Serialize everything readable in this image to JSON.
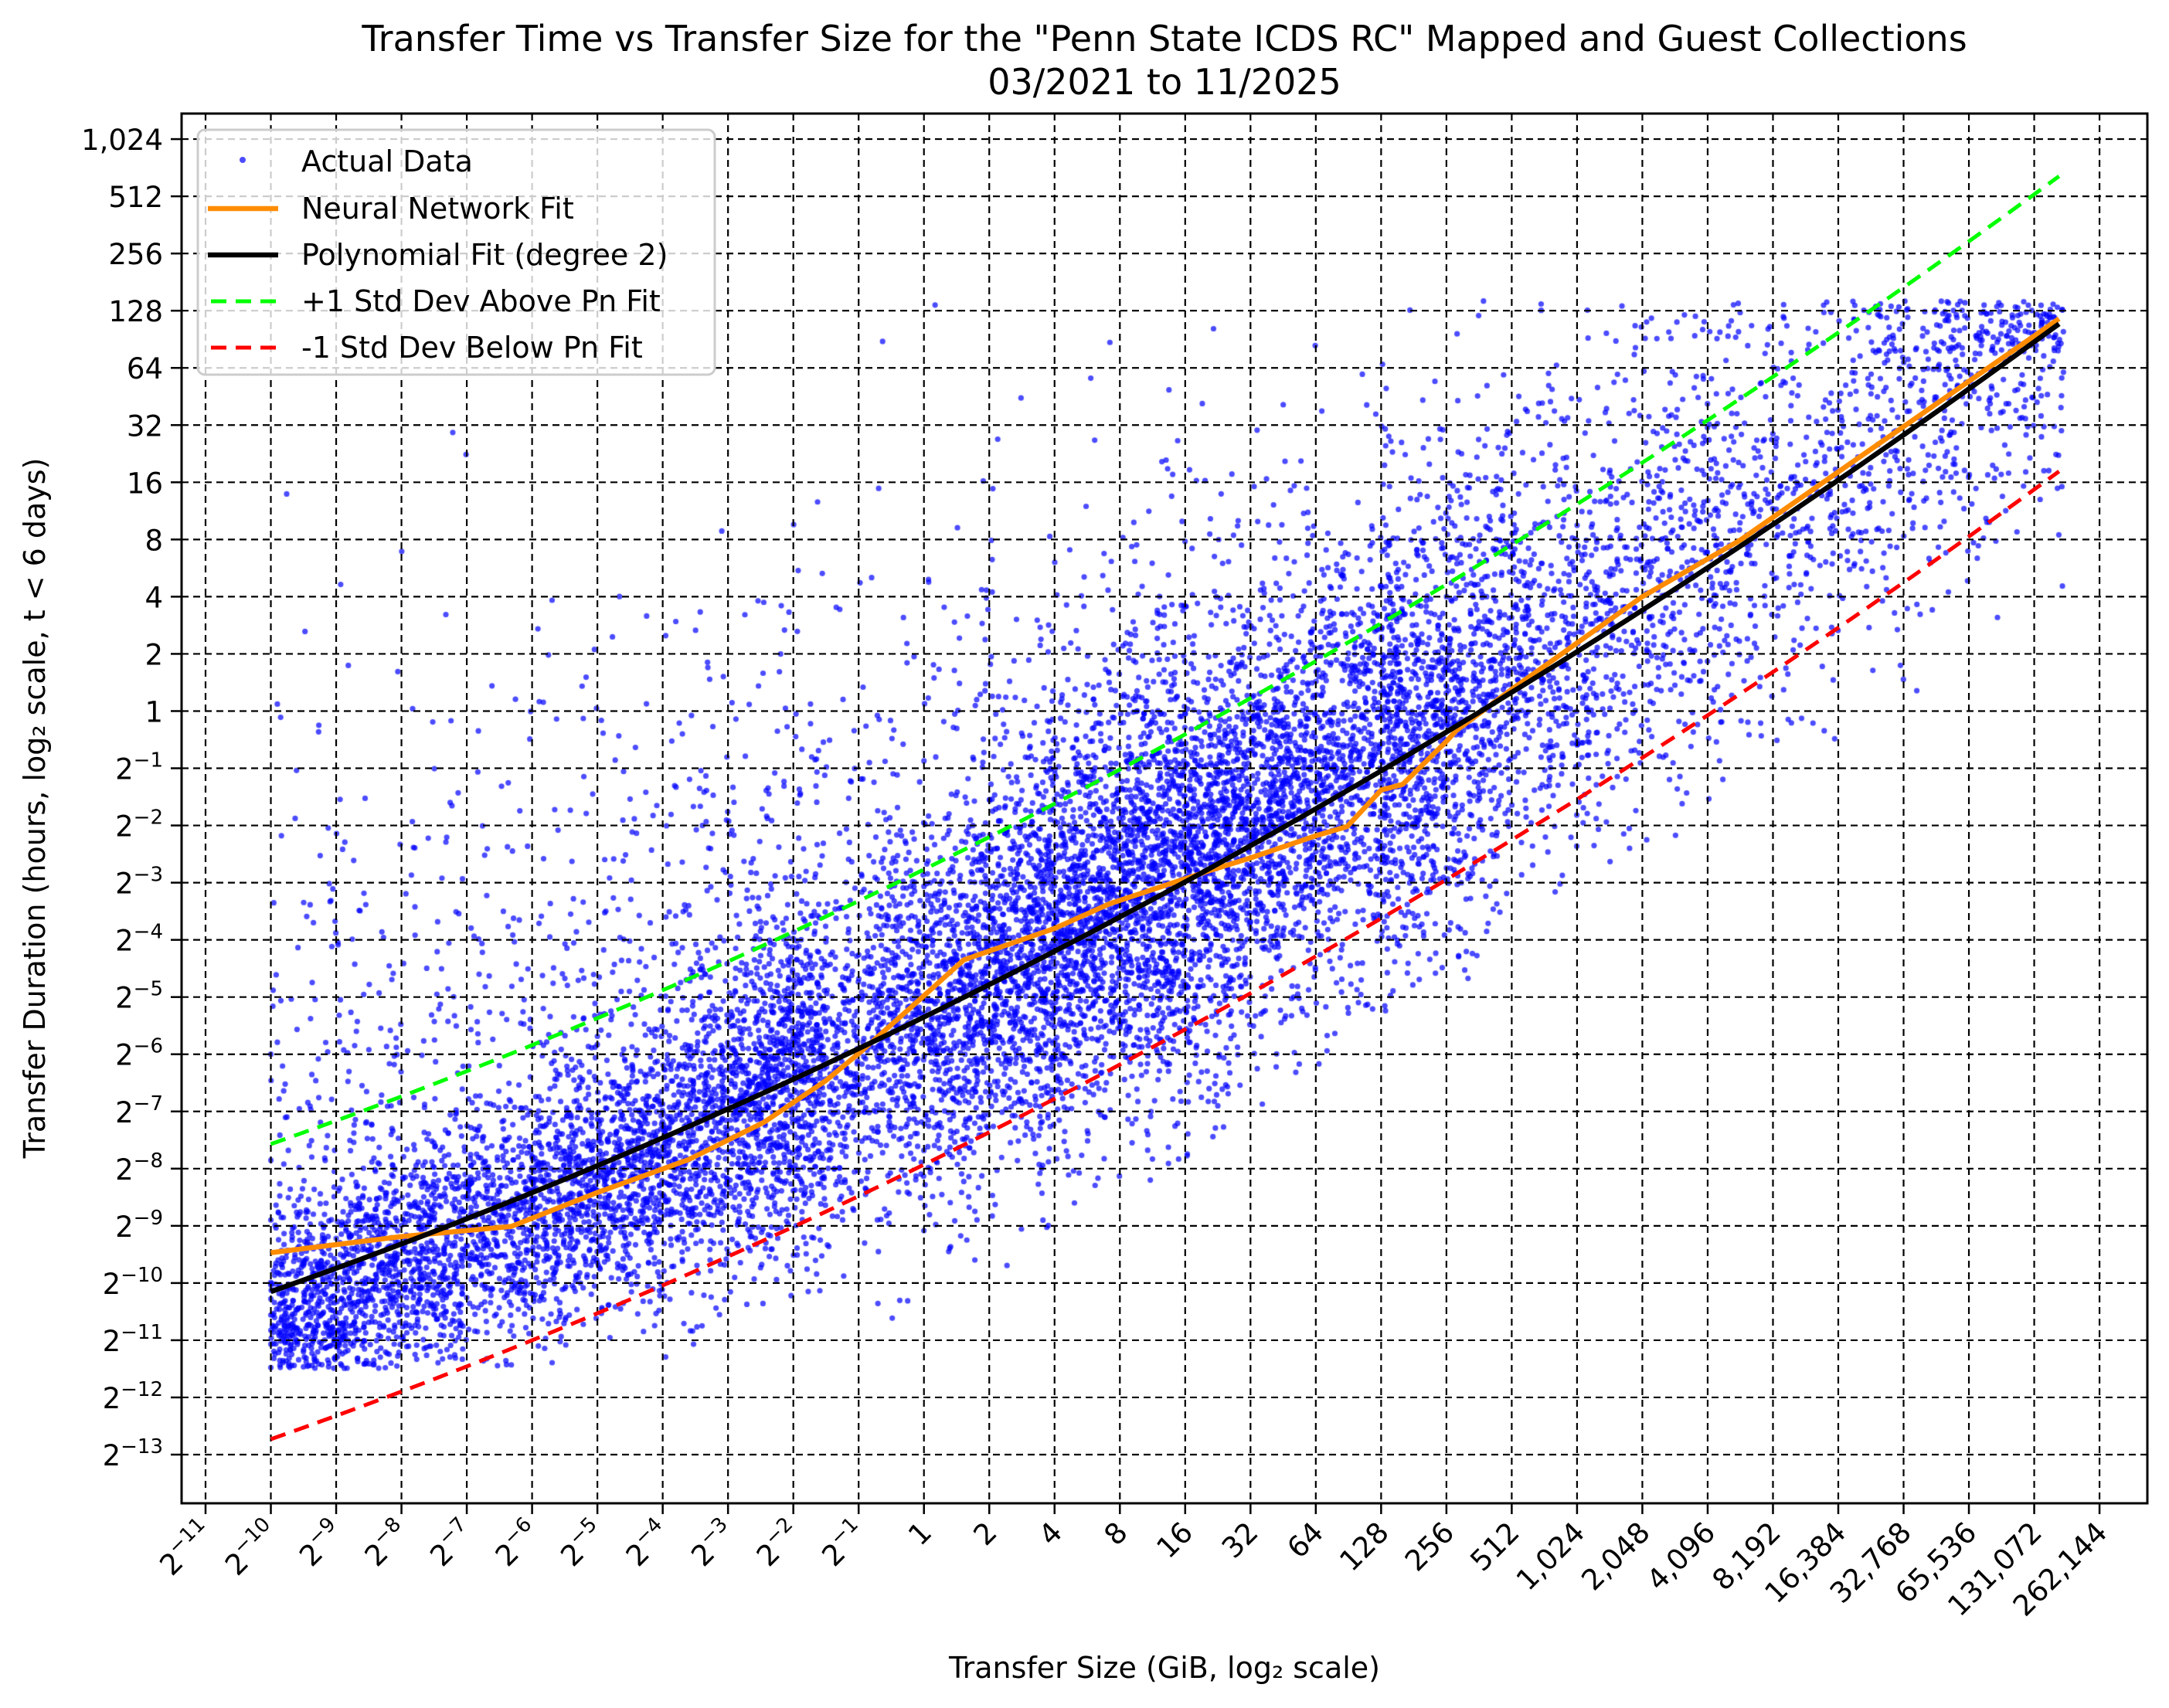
{
  "figure": {
    "title_line1": "Transfer Time vs Transfer Size for the \"Penn State ICDS RC\" Mapped and Guest Collections",
    "title_line2": "03/2021 to 11/2025",
    "xlabel": "Transfer Size (GiB, log₂ scale)",
    "ylabel": "Transfer Duration (hours, log₂ scale, t < 6 days)"
  },
  "legend": {
    "items": [
      {
        "label": "Actual Data",
        "kind": "marker",
        "color": "#0000ff"
      },
      {
        "label": "Neural Network Fit",
        "kind": "line",
        "color": "#ff8c00",
        "dash": "solid"
      },
      {
        "label": "Polynomial Fit (degree 2)",
        "kind": "line",
        "color": "#000000",
        "dash": "solid"
      },
      {
        "label": "+1 Std Dev Above Pn Fit",
        "kind": "line",
        "color": "#00ff00",
        "dash": "dashed"
      },
      {
        "label": "-1 Std Dev Below Pn Fit",
        "kind": "line",
        "color": "#ff0000",
        "dash": "dashed"
      }
    ]
  },
  "colors": {
    "scatter": "#0000ff",
    "nn_fit": "#ff8c00",
    "poly_fit": "#000000",
    "plus_std": "#00ff00",
    "minus_std": "#ff0000",
    "grid": "#000000"
  },
  "chart_data": {
    "type": "scatter",
    "title": "Transfer Time vs Transfer Size for the \"Penn State ICDS RC\" Mapped and Guest Collections — 03/2021 to 11/2025",
    "xlabel": "Transfer Size (GiB, log₂ scale)",
    "ylabel": "Transfer Duration (hours, log₂ scale, t < 6 days)",
    "xscale": "log2",
    "yscale": "log2",
    "xlim_log2": [
      -11.37,
      18.73
    ],
    "ylim_log2": [
      -13.85,
      10.45
    ],
    "grid": true,
    "legend_position": "upper left",
    "x_ticks_log2": [
      -11,
      -10,
      -9,
      -8,
      -7,
      -6,
      -5,
      -4,
      -3,
      -2,
      -1,
      0,
      1,
      2,
      3,
      4,
      5,
      6,
      7,
      8,
      9,
      10,
      11,
      12,
      13,
      14,
      15,
      16,
      17,
      18
    ],
    "x_tick_labels": [
      "2^-11",
      "2^-10",
      "2^-9",
      "2^-8",
      "2^-7",
      "2^-6",
      "2^-5",
      "2^-4",
      "2^-3",
      "2^-2",
      "2^-1",
      "1",
      "2",
      "4",
      "8",
      "16",
      "32",
      "64",
      "128",
      "256",
      "512",
      "1,024",
      "2,048",
      "4,096",
      "8,192",
      "16,384",
      "32,768",
      "65,536",
      "131,072",
      "262,144"
    ],
    "y_ticks_log2": [
      10,
      9,
      8,
      7,
      6,
      5,
      4,
      3,
      2,
      1,
      0,
      -1,
      -2,
      -3,
      -4,
      -5,
      -6,
      -7,
      -8,
      -9,
      -10,
      -11,
      -12,
      -13
    ],
    "y_tick_labels": [
      "1,024",
      "512",
      "256",
      "128",
      "64",
      "32",
      "16",
      "8",
      "4",
      "2",
      "1",
      "2^-1",
      "2^-2",
      "2^-3",
      "2^-4",
      "2^-5",
      "2^-6",
      "2^-7",
      "2^-8",
      "2^-9",
      "2^-10",
      "2^-11",
      "2^-12",
      "2^-13"
    ],
    "series": [
      {
        "name": "Polynomial Fit (degree 2)",
        "type": "line",
        "model": "log2(y) = -5.35 + 0.5594*log2(x) + 0.00794*log2(x)^2",
        "coefficients": [
          -5.35,
          0.5594,
          0.00794
        ],
        "x_range_log2": [
          -10,
          17.38
        ]
      },
      {
        "name": "+1 Std Dev Above Pn Fit",
        "type": "line",
        "offset_log2": 2.58
      },
      {
        "name": "-1 Std Dev Below Pn Fit",
        "type": "line",
        "offset_log2": -2.58
      },
      {
        "name": "Neural Network Fit",
        "type": "line",
        "x_log2": [
          -10.0,
          -8.02,
          -6.32,
          -5.03,
          -3.6,
          -2.45,
          -1.5,
          -0.96,
          -0.14,
          0.61,
          2.0,
          2.84,
          4.4,
          5.02,
          6.0,
          6.48,
          7.0,
          7.33,
          8.0,
          8.15,
          9.0,
          11.0,
          12.5,
          14.2,
          17.38
        ],
        "y_log2": [
          -9.47,
          -9.19,
          -9.01,
          -8.43,
          -7.84,
          -7.19,
          -6.46,
          -5.95,
          -5.12,
          -4.35,
          -3.8,
          -3.37,
          -2.78,
          -2.56,
          -2.18,
          -2.02,
          -1.38,
          -1.28,
          -0.53,
          -0.34,
          0.38,
          2.0,
          2.99,
          4.34,
          6.86
        ]
      },
      {
        "name": "Actual Data",
        "type": "scatter",
        "approx_points": 14000,
        "x_extent_log2": [
          -10,
          17.45
        ],
        "y_extent_log2": [
          -11.6,
          7.17
        ],
        "dense_region": "bottom-left band from 2^-10 to 2^-2 GiB at 2^-11 to 2^-9 hours; main cloud 2^-1 to 2^11 GiB spanning about ±3 octaves around the fit",
        "ceiling_hours": 144
      }
    ]
  }
}
